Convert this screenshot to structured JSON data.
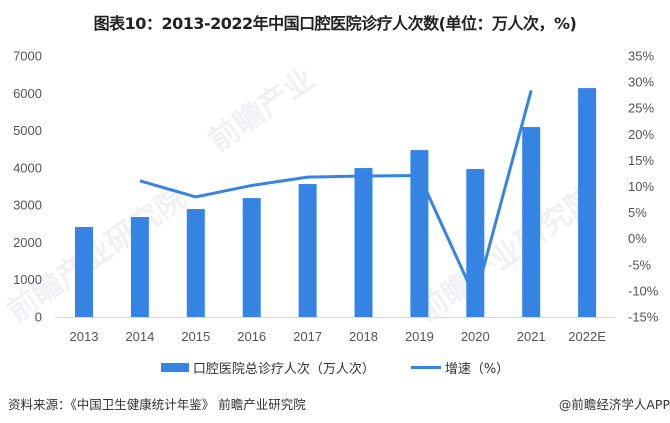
{
  "title": "图表10：2013-2022年中国口腔医院诊疗人次数(单位：万人次，%)",
  "chart_data": {
    "type": "bar+line",
    "title": "图表10：2013-2022年中国口腔医院诊疗人次数(单位：万人次，%)",
    "categories": [
      "2013",
      "2014",
      "2015",
      "2016",
      "2017",
      "2018",
      "2019",
      "2020",
      "2021",
      "2022E"
    ],
    "series": [
      {
        "name": "口腔医院总诊疗人次（万人次）",
        "type": "bar",
        "axis": "left",
        "color": "#3584E4",
        "values": [
          2413,
          2681,
          2895,
          3190,
          3566,
          3995,
          4477,
          3968,
          5094,
          6139
        ]
      },
      {
        "name": "增速（%）",
        "type": "line",
        "axis": "right",
        "color": "#3584E4",
        "values": [
          null,
          11.1,
          8.0,
          10.2,
          11.8,
          12.0,
          12.1,
          -11.4,
          28.4,
          null
        ]
      }
    ],
    "y_left": {
      "min": 0,
      "max": 7000,
      "ticks": [
        0,
        1000,
        2000,
        3000,
        4000,
        5000,
        6000,
        7000
      ],
      "label": ""
    },
    "y_right": {
      "min": -15,
      "max": 35,
      "ticks": [
        "-15%",
        "-10%",
        "-5%",
        "0%",
        "5%",
        "10%",
        "15%",
        "20%",
        "25%",
        "30%",
        "35%"
      ],
      "label": ""
    },
    "xlabel": "",
    "grid": false,
    "legend_position": "bottom"
  },
  "legend": {
    "bar_label": "口腔医院总诊疗人次（万人次）",
    "line_label": "增速（%）"
  },
  "footer": {
    "source": "资料来源：《中国卫生健康统计年鉴》 前瞻产业研究院",
    "credit": "@前瞻经济学人APP"
  },
  "watermark": {
    "text1": "前瞻产业研究院",
    "text2": "前瞻产业"
  }
}
